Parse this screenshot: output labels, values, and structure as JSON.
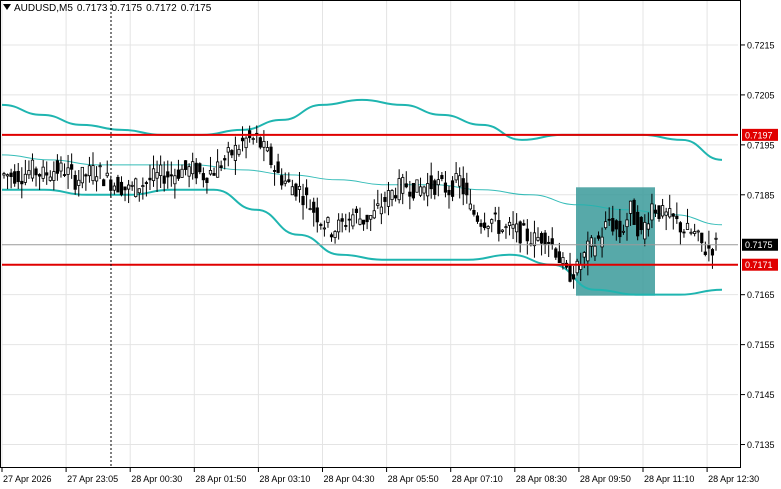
{
  "header": {
    "symbol_tf": "AUDUSD,M5",
    "open": "0.7173",
    "high": "0.7175",
    "low": "0.7172",
    "close": "0.7175"
  },
  "price_axis": {
    "ticks": [
      "0.7215",
      "0.7205",
      "0.7195",
      "0.7185",
      "0.7165",
      "0.7155",
      "0.7145",
      "0.7135"
    ],
    "ylim": [
      0.71305,
      0.72238
    ]
  },
  "time_axis": {
    "labels": [
      "27 Apr 2026",
      "27 Apr 23:05",
      "28 Apr 00:30",
      "28 Apr 01:50",
      "28 Apr 03:10",
      "28 Apr 04:30",
      "28 Apr 05:50",
      "28 Apr 07:10",
      "28 Apr 08:30",
      "28 Apr 09:50",
      "28 Apr 11:10",
      "28 Apr 12:30"
    ]
  },
  "levels": {
    "resistance": {
      "value": 0.7197,
      "label": "0.7197",
      "color": "#e00000"
    },
    "support": {
      "value": 0.7171,
      "label": "0.7171",
      "color": "#e00000"
    },
    "current": {
      "value": 0.7175,
      "label": "0.7175",
      "color": "#000000"
    }
  },
  "colors": {
    "band": "#1fb5b0",
    "candle": "#000000",
    "zone": "#3a9a9a",
    "grid": "#e4e4e4"
  },
  "chart_data": {
    "type": "line",
    "symbol": "AUDUSD",
    "timeframe": "M5",
    "x_labels": [
      "27 Apr 2026",
      "27 Apr 23:05",
      "28 Apr 00:30",
      "28 Apr 01:50",
      "28 Apr 03:10",
      "28 Apr 04:30",
      "28 Apr 05:50",
      "28 Apr 07:10",
      "28 Apr 08:30",
      "28 Apr 09:50",
      "28 Apr 11:10",
      "28 Apr 12:30"
    ],
    "ylim": [
      0.71305,
      0.72238
    ],
    "series": [
      {
        "name": "close",
        "values": [
          0.7189,
          0.7189,
          0.719,
          0.7189,
          0.719,
          0.719,
          0.7188,
          0.7189,
          0.719,
          0.7188,
          0.7187,
          0.7186,
          0.7187,
          0.7188,
          0.7189,
          0.7189,
          0.719,
          0.719,
          0.7189,
          0.719,
          0.7192,
          0.7194,
          0.7196,
          0.7196,
          0.7193,
          0.7189,
          0.7187,
          0.7186,
          0.7183,
          0.718,
          0.7178,
          0.7179,
          0.7181,
          0.718,
          0.7181,
          0.7184,
          0.7186,
          0.7187,
          0.7186,
          0.7187,
          0.7187,
          0.7186,
          0.7188,
          0.7182,
          0.718,
          0.718,
          0.7178,
          0.7178,
          0.7177,
          0.7176,
          0.7177,
          0.7174,
          0.7169,
          0.717,
          0.7174,
          0.7176,
          0.718,
          0.7177,
          0.7182,
          0.7177,
          0.7183,
          0.7181,
          0.718,
          0.7178,
          0.7177,
          0.7174,
          0.7175
        ]
      },
      {
        "name": "upper_band",
        "values": [
          0.7203,
          0.7201,
          0.7199,
          0.7198,
          0.7197,
          0.7197,
          0.7198,
          0.72,
          0.7203,
          0.7204,
          0.7203,
          0.7201,
          0.7199,
          0.7196,
          0.7197,
          0.7197,
          0.7197,
          0.7196,
          0.7192
        ]
      },
      {
        "name": "middle_band",
        "values": [
          0.7193,
          0.7192,
          0.7191,
          0.7191,
          0.7191,
          0.719,
          0.7189,
          0.7188,
          0.7187,
          0.7187,
          0.7186,
          0.7185,
          0.7183,
          0.7182,
          0.7181,
          0.7179
        ]
      },
      {
        "name": "lower_band",
        "values": [
          0.7186,
          0.7186,
          0.7185,
          0.7185,
          0.7186,
          0.7186,
          0.7182,
          0.7177,
          0.7173,
          0.7172,
          0.7172,
          0.7172,
          0.7173,
          0.7171,
          0.7166,
          0.7165,
          0.7165,
          0.7166
        ]
      }
    ],
    "levels": [
      0.7197,
      0.7171
    ],
    "zone": {
      "price_top": 0.71865,
      "price_bottom": 0.71648,
      "from": "28 Apr 08:30",
      "to": "28 Apr 09:50"
    }
  }
}
